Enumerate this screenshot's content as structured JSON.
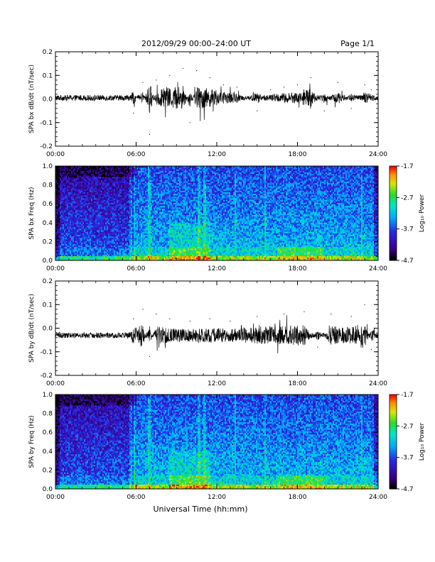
{
  "header": {
    "title": "2012/09/29  00:00–24:00 UT",
    "page": "Page 1/1"
  },
  "xlabel": "Universal Time (hh:mm)",
  "colorbar": {
    "label": "Log₁₀ Power",
    "ticks": [
      -1.7,
      -2.7,
      -3.7,
      -4.7
    ]
  },
  "chart_data": [
    {
      "type": "line",
      "ylabel": "SPA bx dB/dt (nT/sec)",
      "xlim": [
        0,
        24
      ],
      "ylim": [
        -0.2,
        0.2
      ],
      "xticks": [
        "00:00",
        "06:00",
        "12:00",
        "18:00",
        "24:00"
      ],
      "yticks": [
        "0.2",
        "0.1",
        "0.0",
        "-0.1",
        "-0.2"
      ],
      "series": [
        {
          "x": [
            0,
            2,
            4,
            5.5,
            5.8,
            6.5,
            7.0,
            7.5,
            8.5,
            9.5,
            10.0,
            10.5,
            11.5,
            12.5,
            13.5,
            15,
            16,
            17,
            18,
            19,
            20,
            21,
            22,
            23,
            23.5,
            24
          ],
          "y": [
            0.005,
            0.0,
            0.005,
            0.0,
            -0.06,
            0.07,
            -0.15,
            0.08,
            0.1,
            0.13,
            -0.1,
            0.12,
            0.09,
            0.06,
            0.05,
            -0.05,
            0.04,
            0.05,
            0.06,
            0.09,
            -0.05,
            0.07,
            -0.04,
            0.06,
            0.04,
            0.0
          ]
        }
      ]
    },
    {
      "type": "heatmap",
      "ylabel": "SPA bx Freq (Hz)",
      "xlim": [
        0,
        24
      ],
      "ylim": [
        0.0,
        1.0
      ],
      "zlim": [
        -4.7,
        -1.7
      ],
      "xticks": [
        "00:00",
        "06:00",
        "12:00",
        "18:00",
        "24:00"
      ],
      "yticks": [
        "1.0",
        "0.8",
        "0.6",
        "0.4",
        "0.2",
        "0.0"
      ]
    },
    {
      "type": "line",
      "ylabel": "SPA by dB/dt (nT/sec)",
      "xlim": [
        0,
        24
      ],
      "ylim": [
        -0.2,
        0.2
      ],
      "xticks": [
        "00:00",
        "06:00",
        "12:00",
        "18:00",
        "24:00"
      ],
      "yticks": [
        "0.2",
        "0.1",
        "0.0",
        "-0.1",
        "-0.2"
      ],
      "series": [
        {
          "x": [
            0,
            2,
            4,
            5.5,
            5.8,
            6.5,
            7.0,
            7.5,
            8.5,
            10.0,
            11.5,
            13,
            15,
            17,
            18.5,
            19.5,
            20.5,
            22,
            23,
            23.5,
            24
          ],
          "y": [
            -0.03,
            -0.035,
            -0.03,
            -0.02,
            0.04,
            0.08,
            -0.12,
            0.06,
            0.04,
            0.03,
            0.04,
            0.03,
            0.05,
            0.06,
            0.07,
            -0.08,
            0.06,
            0.05,
            0.1,
            -0.09,
            -0.03
          ]
        }
      ]
    },
    {
      "type": "heatmap",
      "ylabel": "SPA by Freq (Hz)",
      "xlim": [
        0,
        24
      ],
      "ylim": [
        0.0,
        1.0
      ],
      "zlim": [
        -4.7,
        -1.7
      ],
      "xticks": [
        "00:00",
        "06:00",
        "12:00",
        "18:00",
        "24:00"
      ],
      "yticks": [
        "1.0",
        "0.8",
        "0.6",
        "0.4",
        "0.2",
        "0.0"
      ]
    }
  ]
}
